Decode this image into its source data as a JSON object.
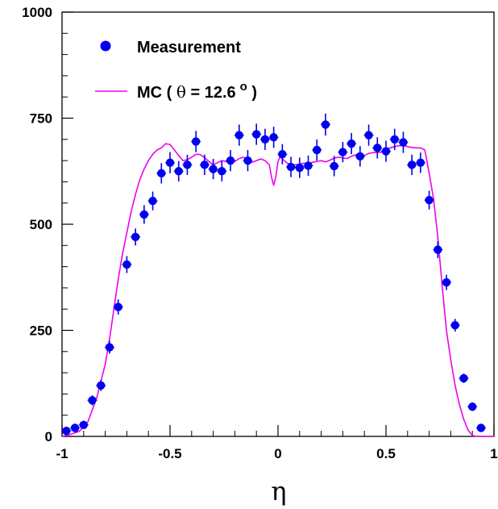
{
  "chart_data": {
    "type": "scatter",
    "title": "",
    "xlabel": "η",
    "ylabel": "",
    "xlim": [
      -1,
      1
    ],
    "ylim": [
      0,
      1000
    ],
    "grid": false,
    "legend_position": "top-left",
    "x_ticks": [
      "-1",
      "-0.5",
      "0",
      "0.5",
      "1"
    ],
    "y_ticks": [
      "0",
      "250",
      "500",
      "750",
      "1000"
    ],
    "colors": {
      "measurement": "#0000ee",
      "mc": "#ee00ee",
      "axis": "#000000"
    },
    "legend": {
      "measurement": "Measurement",
      "mc_prefix": "MC ( ",
      "mc_theta": "θ",
      "mc_value": " = 12.6",
      "mc_degree": "o",
      "mc_suffix": " )"
    },
    "series": [
      {
        "name": "Measurement",
        "kind": "points_with_errors",
        "x": [
          -0.98,
          -0.94,
          -0.9,
          -0.86,
          -0.82,
          -0.78,
          -0.74,
          -0.7,
          -0.66,
          -0.62,
          -0.58,
          -0.54,
          -0.5,
          -0.46,
          -0.42,
          -0.38,
          -0.34,
          -0.3,
          -0.26,
          -0.22,
          -0.18,
          -0.14,
          -0.1,
          -0.06,
          -0.02,
          0.02,
          0.06,
          0.1,
          0.14,
          0.18,
          0.22,
          0.26,
          0.3,
          0.34,
          0.38,
          0.42,
          0.46,
          0.5,
          0.54,
          0.58,
          0.62,
          0.66,
          0.7,
          0.74,
          0.78,
          0.82,
          0.86,
          0.9,
          0.94
        ],
        "y": [
          13,
          20,
          27,
          85,
          120,
          210,
          305,
          405,
          470,
          523,
          555,
          620,
          645,
          625,
          640,
          695,
          640,
          630,
          625,
          650,
          710,
          650,
          712,
          700,
          705,
          665,
          635,
          633,
          638,
          675,
          735,
          637,
          670,
          690,
          660,
          710,
          680,
          672,
          700,
          693,
          640,
          645,
          557,
          440,
          363,
          262,
          137,
          70,
          20
        ],
        "err": [
          10,
          10,
          10,
          12,
          13,
          15,
          18,
          20,
          20,
          22,
          22,
          24,
          25,
          24,
          24,
          25,
          24,
          24,
          24,
          25,
          25,
          25,
          25,
          25,
          25,
          24,
          24,
          24,
          24,
          25,
          26,
          24,
          24,
          25,
          24,
          25,
          25,
          25,
          25,
          25,
          24,
          24,
          22,
          20,
          18,
          15,
          11,
          10,
          9
        ]
      },
      {
        "name": "MC ( θ = 12.6 ° )",
        "kind": "line",
        "x": [
          -1.0,
          -0.96,
          -0.92,
          -0.88,
          -0.84,
          -0.8,
          -0.78,
          -0.76,
          -0.74,
          -0.72,
          -0.7,
          -0.68,
          -0.66,
          -0.64,
          -0.62,
          -0.6,
          -0.58,
          -0.56,
          -0.54,
          -0.52,
          -0.5,
          -0.48,
          -0.46,
          -0.44,
          -0.42,
          -0.4,
          -0.38,
          -0.36,
          -0.34,
          -0.32,
          -0.3,
          -0.28,
          -0.26,
          -0.24,
          -0.22,
          -0.2,
          -0.18,
          -0.16,
          -0.14,
          -0.12,
          -0.1,
          -0.08,
          -0.06,
          -0.04,
          -0.03,
          -0.02,
          -0.01,
          0.0,
          0.01,
          0.02,
          0.04,
          0.06,
          0.08,
          0.1,
          0.12,
          0.14,
          0.16,
          0.18,
          0.2,
          0.22,
          0.24,
          0.26,
          0.28,
          0.3,
          0.32,
          0.34,
          0.36,
          0.38,
          0.4,
          0.42,
          0.44,
          0.46,
          0.48,
          0.5,
          0.52,
          0.54,
          0.56,
          0.58,
          0.6,
          0.62,
          0.64,
          0.66,
          0.68,
          0.7,
          0.72,
          0.74,
          0.76,
          0.78,
          0.8,
          0.82,
          0.84,
          0.86,
          0.88,
          0.9,
          0.92,
          0.94,
          0.96,
          0.98,
          1.0
        ],
        "y": [
          0,
          5,
          12,
          35,
          90,
          170,
          230,
          300,
          370,
          430,
          480,
          530,
          570,
          605,
          630,
          650,
          665,
          675,
          680,
          690,
          688,
          675,
          662,
          650,
          652,
          658,
          665,
          664,
          657,
          648,
          640,
          645,
          650,
          648,
          645,
          648,
          655,
          658,
          650,
          646,
          650,
          654,
          650,
          640,
          610,
          592,
          612,
          648,
          660,
          654,
          645,
          640,
          640,
          642,
          644,
          643,
          646,
          648,
          650,
          647,
          651,
          656,
          658,
          656,
          655,
          660,
          664,
          664,
          662,
          667,
          669,
          669,
          670,
          677,
          680,
          683,
          685,
          685,
          683,
          681,
          680,
          680,
          675,
          620,
          560,
          470,
          355,
          250,
          180,
          120,
          75,
          40,
          15,
          2,
          0,
          0,
          0,
          0,
          0
        ]
      }
    ]
  }
}
